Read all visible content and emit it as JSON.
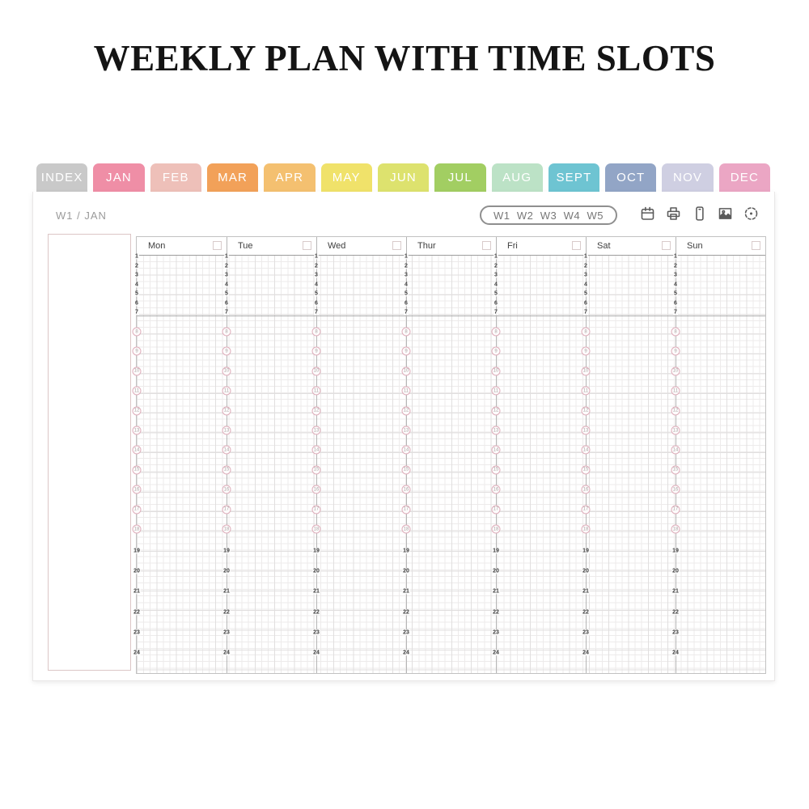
{
  "title": "WEEKLY PLAN WITH TIME SLOTS",
  "tabs": [
    {
      "label": "INDEX",
      "color": "#c9c9c9",
      "active": false
    },
    {
      "label": "JAN",
      "color": "#ef8ea6",
      "active": true
    },
    {
      "label": "FEB",
      "color": "#eec0b9",
      "active": false
    },
    {
      "label": "MAR",
      "color": "#f2a159",
      "active": false
    },
    {
      "label": "APR",
      "color": "#f4c070",
      "active": false
    },
    {
      "label": "MAY",
      "color": "#f0e26a",
      "active": false
    },
    {
      "label": "JUN",
      "color": "#dde26e",
      "active": false
    },
    {
      "label": "JUL",
      "color": "#a2ce62",
      "active": false
    },
    {
      "label": "AUG",
      "color": "#bce2c6",
      "active": false
    },
    {
      "label": "SEPT",
      "color": "#6ec4d2",
      "active": false
    },
    {
      "label": "OCT",
      "color": "#92a5c6",
      "active": false
    },
    {
      "label": "NOV",
      "color": "#cfcfe2",
      "active": false
    },
    {
      "label": "DEC",
      "color": "#eba6c4",
      "active": false
    }
  ],
  "toolbar": {
    "current_label": "W1 / JAN",
    "week_buttons": [
      "W1",
      "W2",
      "W3",
      "W4",
      "W5"
    ],
    "icons": [
      "calendar-icon",
      "printer-icon",
      "phone-icon",
      "image-icon",
      "target-icon"
    ]
  },
  "grid": {
    "days": [
      "Mon",
      "Tue",
      "Wed",
      "Thur",
      "Fri",
      "Sat",
      "Sun"
    ],
    "hours_top": [
      1,
      2,
      3,
      4,
      5,
      6,
      7
    ],
    "hours_mid": [
      8,
      9,
      10,
      11,
      12,
      13,
      14,
      15,
      16,
      17,
      18
    ],
    "hours_bottom": [
      19,
      20,
      21,
      22,
      23,
      24
    ]
  },
  "colors": {
    "tab_text": "#ffffff",
    "hour_circle_border": "#dfaebb",
    "grid_line": "#b5b5b5",
    "paper_line": "#edebeb",
    "sidebar_border": "#dcc6c6",
    "icon_stroke": "#5a5a5a"
  }
}
